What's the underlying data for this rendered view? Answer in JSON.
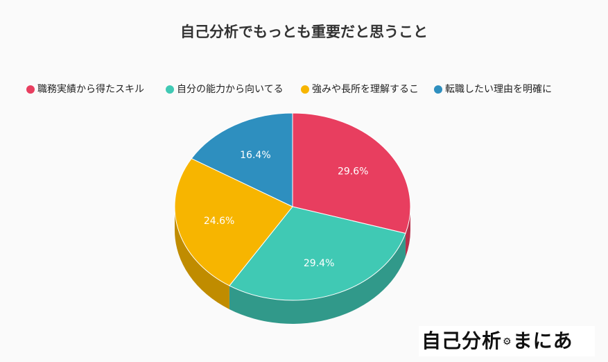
{
  "chart_data": {
    "type": "pie",
    "title": "自己分析でもっとも重要だと思うこと",
    "categories": [
      "職務実績から得たスキル",
      "自分の能力から向いてる",
      "強みや長所を理解すること",
      "転職したい理由を明確に"
    ],
    "values": [
      29.6,
      29.4,
      24.6,
      16.4
    ],
    "value_labels": [
      "29.6%",
      "29.4%",
      "24.6%",
      "16.4%"
    ],
    "colors": [
      "#e83e5f",
      "#40c9b4",
      "#f7b500",
      "#2e8fbf"
    ],
    "side_colors": [
      "#b8304b",
      "#31998a",
      "#c08c00",
      "#246f95"
    ],
    "legend_position": "top",
    "style": "3d"
  },
  "legend_visible_labels": [
    "職務実績から得たスキル",
    "自分の能力から向いてる",
    "強みや長所を理解するこ",
    "転職したい理由を明確に"
  ],
  "logo": {
    "text_start": "自己分析",
    "text_end": "まにあ",
    "icon": "gear-icon"
  }
}
